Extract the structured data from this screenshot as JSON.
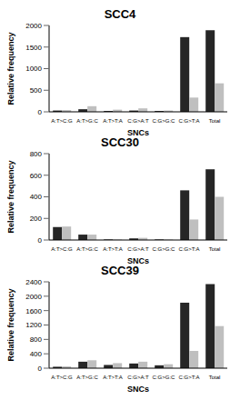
{
  "chart_data": [
    {
      "type": "bar",
      "title": "SCC4",
      "x_label": "SNCs",
      "y_label": "Relative frequency",
      "categories": [
        "A:T>C:G",
        "A:T>G:C",
        "A:T>T:A",
        "C:G>A:T",
        "C:G>G:C",
        "C:G>T:A",
        "Total"
      ],
      "series": [
        {
          "color": "#262626",
          "values": [
            30,
            60,
            20,
            30,
            20,
            1730,
            1890
          ]
        },
        {
          "color": "#bfbfbf",
          "values": [
            40,
            130,
            50,
            80,
            30,
            330,
            660
          ]
        }
      ],
      "ylim": [
        0,
        2000
      ],
      "yticks": [
        0,
        500,
        1000,
        1500,
        2000
      ],
      "grid": false
    },
    {
      "type": "bar",
      "title": "SCC30",
      "x_label": "SNCs",
      "y_label": "Relative frequency",
      "categories": [
        "A:T>C:G",
        "A:T>G:C",
        "A:T>T:A",
        "C:G>A:T",
        "C:G>G:C",
        "C:G>T:A",
        "Total"
      ],
      "series": [
        {
          "color": "#262626",
          "values": [
            120,
            50,
            5,
            15,
            5,
            460,
            655
          ]
        },
        {
          "color": "#bfbfbf",
          "values": [
            125,
            50,
            5,
            20,
            5,
            190,
            400
          ]
        }
      ],
      "ylim": [
        0,
        800
      ],
      "yticks": [
        0,
        200,
        400,
        600,
        800
      ],
      "grid": false
    },
    {
      "type": "bar",
      "title": "SCC39",
      "x_label": "SNCs",
      "y_label": "Relative frequency",
      "categories": [
        "A:T>C:G",
        "A:T>G:C",
        "A:T>T:A",
        "C:G>A:T",
        "C:G>G:C",
        "C:G>T:A",
        "Total"
      ],
      "series": [
        {
          "color": "#262626",
          "values": [
            40,
            180,
            90,
            130,
            80,
            1820,
            2340
          ]
        },
        {
          "color": "#bfbfbf",
          "values": [
            50,
            220,
            140,
            180,
            110,
            480,
            1170
          ]
        }
      ],
      "ylim": [
        0,
        2400
      ],
      "yticks": [
        0,
        400,
        800,
        1200,
        1600,
        2000,
        2400
      ],
      "grid": false
    }
  ]
}
